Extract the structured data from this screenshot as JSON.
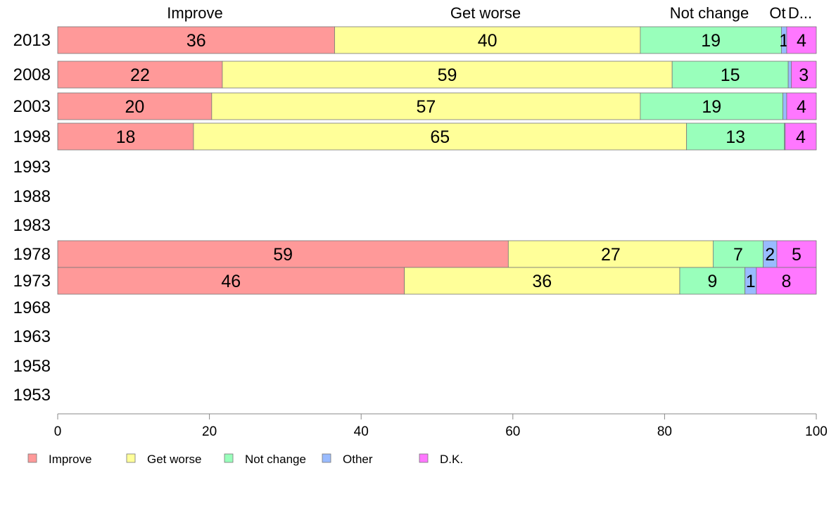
{
  "chart_data": {
    "type": "bar",
    "orientation": "horizontal",
    "stacked": true,
    "title": "",
    "xlabel": "",
    "ylabel": "",
    "xlim": [
      0,
      100
    ],
    "x_ticks": [
      "0",
      "20",
      "40",
      "60",
      "80",
      "100"
    ],
    "categories": [
      "2013",
      "2008",
      "2003",
      "1998",
      "1993",
      "1988",
      "1983",
      "1978",
      "1973",
      "1968",
      "1963",
      "1958",
      "1953"
    ],
    "column_headers": [
      "Improve",
      "Get worse",
      "Not change",
      "Ot",
      "D..."
    ],
    "series": [
      {
        "name": "Improve",
        "color": "#ff9999",
        "values": [
          36.5,
          21.7,
          20.3,
          17.9,
          null,
          null,
          null,
          59.4,
          45.7,
          null,
          null,
          null,
          null
        ],
        "labels": [
          "36",
          "22",
          "20",
          "18",
          "",
          "",
          "",
          "59",
          "46",
          "",
          "",
          "",
          ""
        ]
      },
      {
        "name": "Get worse",
        "color": "#ffff99",
        "values": [
          40.3,
          59.3,
          56.5,
          65.0,
          null,
          null,
          null,
          27.0,
          36.3,
          null,
          null,
          null,
          null
        ],
        "labels": [
          "40",
          "59",
          "57",
          "65",
          "",
          "",
          "",
          "27",
          "36",
          "",
          "",
          "",
          ""
        ]
      },
      {
        "name": "Not change",
        "color": "#99ffbb",
        "values": [
          18.6,
          15.3,
          18.8,
          12.9,
          null,
          null,
          null,
          6.6,
          8.6,
          null,
          null,
          null,
          null
        ],
        "labels": [
          "19",
          "15",
          "19",
          "13",
          "",
          "",
          "",
          "7",
          "9",
          "",
          "",
          "",
          ""
        ]
      },
      {
        "name": "Other",
        "color": "#99bbff",
        "values": [
          0.7,
          0.4,
          0.5,
          0.1,
          null,
          null,
          null,
          1.8,
          1.5,
          null,
          null,
          null,
          null
        ],
        "labels": [
          "1",
          "",
          "",
          "",
          "",
          "",
          "",
          "2",
          "1",
          "",
          "",
          "",
          ""
        ]
      },
      {
        "name": "D.K.",
        "color": "#ff77ff",
        "values": [
          3.9,
          3.3,
          3.9,
          4.1,
          null,
          null,
          null,
          5.2,
          7.9,
          null,
          null,
          null,
          null
        ],
        "labels": [
          "4",
          "3",
          "4",
          "4",
          "",
          "",
          "",
          "5",
          "8",
          "",
          "",
          "",
          ""
        ]
      }
    ],
    "legend": [
      "Improve",
      "Get worse",
      "Not change",
      "Other",
      "D.K."
    ],
    "legend_position": "bottom",
    "grid": false
  }
}
